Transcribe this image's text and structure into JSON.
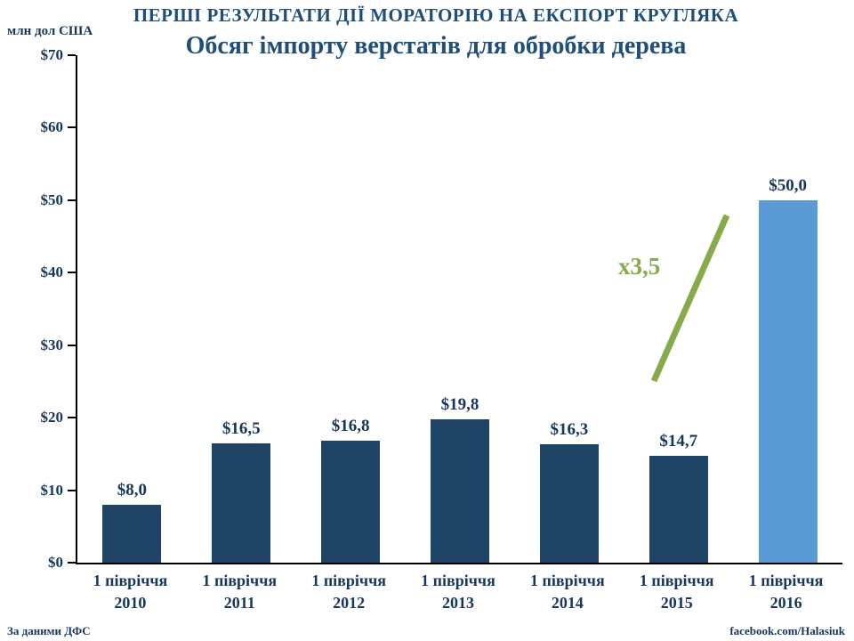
{
  "chart_data": {
    "type": "bar",
    "title": "ПЕРШІ РЕЗУЛЬТАТИ ДІЇ МОРАТОРІЮ НА ЕКСПОРТ КРУГЛЯКА",
    "subtitle": "Обсяг імпорту верстатів для обробки дерева",
    "ylabel": "млн дол США",
    "xlabel": "",
    "categories": [
      {
        "line1": "1 півріччя",
        "line2": "2010"
      },
      {
        "line1": "1 півріччя",
        "line2": "2011"
      },
      {
        "line1": "1 півріччя",
        "line2": "2012"
      },
      {
        "line1": "1 півріччя",
        "line2": "2013"
      },
      {
        "line1": "1 півріччя",
        "line2": "2014"
      },
      {
        "line1": "1 півріччя",
        "line2": "2015"
      },
      {
        "line1": "1 півріччя",
        "line2": "2016"
      }
    ],
    "values": [
      8.0,
      16.5,
      16.8,
      19.8,
      16.3,
      14.7,
      50.0
    ],
    "value_labels": [
      "$8,0",
      "$16,5",
      "$16,8",
      "$19,8",
      "$16,3",
      "$14,7",
      "$50,0"
    ],
    "y_ticks": [
      "$0",
      "$10",
      "$20",
      "$30",
      "$40",
      "$50",
      "$60",
      "$70"
    ],
    "ylim": [
      0,
      70
    ],
    "grid": "off",
    "legend": "none",
    "bar_color": "#1F4466",
    "highlight_color": "#5B9BD5",
    "highlight_index": 6,
    "axis_color": "#000000",
    "title_color": "#1F4E79",
    "label_color": "#17365D",
    "annotation": {
      "text": "х3,5",
      "color": "#87AB4A"
    }
  },
  "footer": {
    "source": "За даними ДФС",
    "credit": "facebook.com/Halasiuk"
  }
}
